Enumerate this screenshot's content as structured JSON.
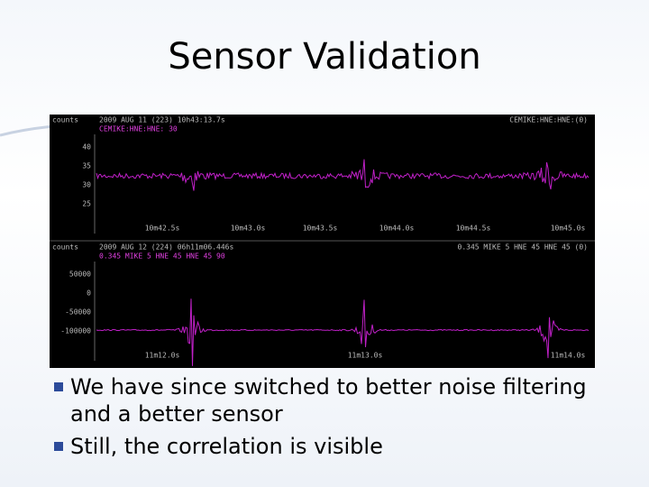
{
  "title": "Sensor Validation",
  "figure": {
    "panels": [
      {
        "unit": "counts",
        "header": "2009 AUG 11 (223) 10h43:13.7s",
        "station": "CEMIKE:HNE:HNE:(0)",
        "channel": "CEMIKE:HNE:HNE: 30",
        "y_labels": [
          "40",
          "35",
          "30",
          "25"
        ],
        "x_labels": [
          "10m42.5s",
          "10m43.0s",
          "10m43.5s",
          "10m44.0s",
          "10m44.5s",
          "10m45.0s"
        ]
      },
      {
        "unit": "counts",
        "header": "2009 AUG 12 (224) 06h11m06.446s",
        "station": "0.345 MIKE 5 HNE 45 HNE 45 (0)",
        "channel": "0.345 MIKE 5 HNE 45 HNE 45 90",
        "y_labels": [
          "50000",
          "0",
          "-50000",
          "-100000"
        ],
        "x_labels": [
          "11m12.0s",
          "11m13.0s",
          "11m14.0s"
        ]
      }
    ]
  },
  "bullets": [
    "We have since switched to better noise filtering and a better sensor",
    "Still, the correlation is visible"
  ]
}
